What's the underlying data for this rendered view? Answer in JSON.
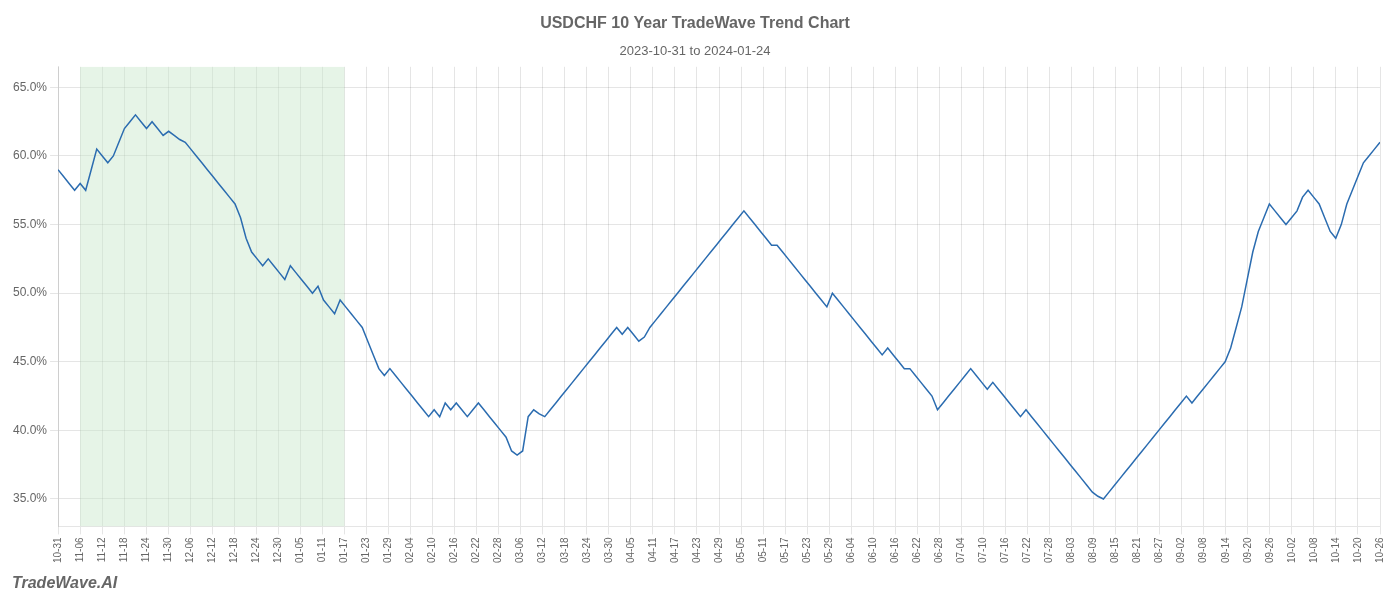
{
  "chart_data": {
    "type": "line",
    "title": "USDCHF 10 Year TradeWave Trend Chart",
    "subtitle": "2023-10-31 to 2024-01-24",
    "annotations": [
      "TradeWave.AI"
    ],
    "color": "#2b6cb0",
    "grid": true,
    "x": [
      0,
      1,
      2,
      3,
      4,
      5,
      6,
      7,
      8,
      9,
      10,
      11,
      12,
      13,
      14,
      15,
      16,
      17,
      18,
      19,
      20,
      21,
      22,
      23,
      24,
      25,
      26,
      27,
      28,
      29,
      30,
      31,
      32,
      33,
      34,
      35,
      36,
      37,
      38,
      39,
      40,
      41,
      42,
      43,
      44,
      45,
      46,
      47,
      48,
      49,
      50,
      51,
      52,
      53,
      54,
      55,
      56,
      57,
      58,
      59,
      60,
      61,
      62,
      63,
      64,
      65,
      66,
      67,
      68,
      69,
      70,
      71,
      72,
      73,
      74,
      75,
      76,
      77,
      78,
      79,
      80,
      81,
      82,
      83,
      84,
      85,
      86,
      87,
      88,
      89,
      90,
      91,
      92,
      93,
      94,
      95,
      96,
      97,
      98,
      99,
      100,
      101,
      102,
      103,
      104,
      105,
      106,
      107,
      108,
      109,
      110,
      111,
      112,
      113,
      114,
      115,
      116,
      117,
      118,
      119,
      120,
      121,
      122,
      123,
      124,
      125,
      126,
      127,
      128,
      129,
      130,
      131,
      132,
      133,
      134,
      135,
      136,
      137,
      138,
      139,
      140,
      141,
      142,
      143,
      144,
      145,
      146,
      147,
      148,
      149,
      150,
      151,
      152,
      153,
      154,
      155,
      156,
      157,
      158,
      159,
      160,
      161,
      162,
      163,
      164,
      165,
      166,
      167,
      168,
      169,
      170,
      171,
      172,
      173,
      174,
      175,
      176,
      177,
      178,
      179,
      180,
      181,
      182,
      183,
      184,
      185,
      186,
      187,
      188,
      189,
      190,
      191,
      192,
      193,
      194,
      195,
      196,
      197,
      198,
      199,
      200,
      201,
      202,
      203,
      204,
      205,
      206,
      207,
      208,
      209,
      210,
      211,
      212,
      213,
      214,
      215,
      216,
      217,
      218,
      219,
      220,
      221,
      222,
      223,
      224,
      225,
      226,
      227,
      228,
      229,
      230,
      231,
      232,
      233,
      234,
      235,
      236,
      237,
      238,
      239
    ],
    "values": [
      59.0,
      58.5,
      58.0,
      57.5,
      58.0,
      57.5,
      59.0,
      60.5,
      60.0,
      59.5,
      60.0,
      61.0,
      62.0,
      62.5,
      63.0,
      62.5,
      62.0,
      62.5,
      62.0,
      61.5,
      61.8,
      61.5,
      61.2,
      61.0,
      60.5,
      60.0,
      59.5,
      59.0,
      58.5,
      58.0,
      57.5,
      57.0,
      56.5,
      55.5,
      54.0,
      53.0,
      52.5,
      52.0,
      52.5,
      52.0,
      51.5,
      51.0,
      52.0,
      51.5,
      51.0,
      50.5,
      50.0,
      50.5,
      49.5,
      49.0,
      48.5,
      49.5,
      49.0,
      48.5,
      48.0,
      47.5,
      46.5,
      45.5,
      44.5,
      44.0,
      44.5,
      44.0,
      43.5,
      43.0,
      42.5,
      42.0,
      41.5,
      41.0,
      41.5,
      41.0,
      42.0,
      41.5,
      42.0,
      41.5,
      41.0,
      41.5,
      42.0,
      41.5,
      41.0,
      40.5,
      40.0,
      39.5,
      38.5,
      38.2,
      38.5,
      41.0,
      41.5,
      41.2,
      41.0,
      41.5,
      42.0,
      42.5,
      43.0,
      43.5,
      44.0,
      44.5,
      45.0,
      45.5,
      46.0,
      46.5,
      47.0,
      47.5,
      47.0,
      47.5,
      47.0,
      46.5,
      46.8,
      47.5,
      48.0,
      48.5,
      49.0,
      49.5,
      50.0,
      50.5,
      51.0,
      51.5,
      52.0,
      52.5,
      53.0,
      53.5,
      54.0,
      54.5,
      55.0,
      55.5,
      56.0,
      55.5,
      55.0,
      54.5,
      54.0,
      53.5,
      53.5,
      53.0,
      52.5,
      52.0,
      51.5,
      51.0,
      50.5,
      50.0,
      49.5,
      49.0,
      50.0,
      49.5,
      49.0,
      48.5,
      48.0,
      47.5,
      47.0,
      46.5,
      46.0,
      45.5,
      46.0,
      45.5,
      45.0,
      44.5,
      44.5,
      44.0,
      43.5,
      43.0,
      42.5,
      41.5,
      42.0,
      42.5,
      43.0,
      43.5,
      44.0,
      44.5,
      44.0,
      43.5,
      43.0,
      43.5,
      43.0,
      42.5,
      42.0,
      41.5,
      41.0,
      41.5,
      41.0,
      40.5,
      40.0,
      39.5,
      39.0,
      38.5,
      38.0,
      37.5,
      37.0,
      36.5,
      36.0,
      35.5,
      35.2,
      35.0,
      35.5,
      36.0,
      36.5,
      37.0,
      37.5,
      38.0,
      38.5,
      39.0,
      39.5,
      40.0,
      40.5,
      41.0,
      41.5,
      42.0,
      42.5,
      42.0,
      42.5,
      43.0,
      43.5,
      44.0,
      44.5,
      45.0,
      46.0,
      47.5,
      49.0,
      51.0,
      53.0,
      54.5,
      55.5,
      56.5,
      56.0,
      55.5,
      55.0,
      55.5,
      56.0,
      57.0,
      57.5,
      57.0,
      56.5,
      55.5,
      54.5,
      54.0,
      55.0,
      56.5,
      57.5,
      58.5,
      59.5,
      60.0,
      60.5,
      61.0
    ],
    "xlim": [
      0,
      239
    ],
    "xticks": [
      {
        "value": 0,
        "label": "10-31"
      },
      {
        "value": 3.9833333333,
        "label": "11-06"
      },
      {
        "value": 7.9666666667,
        "label": "11-12"
      },
      {
        "value": 11.95,
        "label": "11-18"
      },
      {
        "value": 15.9333333333,
        "label": "11-24"
      },
      {
        "value": 19.9166666667,
        "label": "11-30"
      },
      {
        "value": 23.9,
        "label": "12-06"
      },
      {
        "value": 27.8833333333,
        "label": "12-12"
      },
      {
        "value": 31.8666666667,
        "label": "12-18"
      },
      {
        "value": 35.85,
        "label": "12-24"
      },
      {
        "value": 39.8333333333,
        "label": "12-30"
      },
      {
        "value": 43.8166666667,
        "label": "01-05"
      },
      {
        "value": 47.8,
        "label": "01-11"
      },
      {
        "value": 51.7833333333,
        "label": "01-17"
      },
      {
        "value": 55.7666666667,
        "label": "01-23"
      },
      {
        "value": 59.75,
        "label": "01-29"
      },
      {
        "value": 63.7333333333,
        "label": "02-04"
      },
      {
        "value": 67.7166666667,
        "label": "02-10"
      },
      {
        "value": 71.7,
        "label": "02-16"
      },
      {
        "value": 75.6833333333,
        "label": "02-22"
      },
      {
        "value": 79.6666666667,
        "label": "02-28"
      },
      {
        "value": 83.65,
        "label": "03-06"
      },
      {
        "value": 87.6333333333,
        "label": "03-12"
      },
      {
        "value": 91.6166666667,
        "label": "03-18"
      },
      {
        "value": 95.6,
        "label": "03-24"
      },
      {
        "value": 99.5833333333,
        "label": "03-30"
      },
      {
        "value": 103.5666666667,
        "label": "04-05"
      },
      {
        "value": 107.55,
        "label": "04-11"
      },
      {
        "value": 111.5333333333,
        "label": "04-17"
      },
      {
        "value": 115.5166666667,
        "label": "04-23"
      },
      {
        "value": 119.5,
        "label": "04-29"
      },
      {
        "value": 123.4833333333,
        "label": "05-05"
      },
      {
        "value": 127.4666666667,
        "label": "05-11"
      },
      {
        "value": 131.45,
        "label": "05-17"
      },
      {
        "value": 135.4333333333,
        "label": "05-23"
      },
      {
        "value": 139.4166666667,
        "label": "05-29"
      },
      {
        "value": 143.4,
        "label": "06-04"
      },
      {
        "value": 147.3833333333,
        "label": "06-10"
      },
      {
        "value": 151.3666666667,
        "label": "06-16"
      },
      {
        "value": 155.35,
        "label": "06-22"
      },
      {
        "value": 159.3333333333,
        "label": "06-28"
      },
      {
        "value": 163.3166666667,
        "label": "07-04"
      },
      {
        "value": 167.3,
        "label": "07-10"
      },
      {
        "value": 171.2833333333,
        "label": "07-16"
      },
      {
        "value": 175.2666666667,
        "label": "07-22"
      },
      {
        "value": 179.25,
        "label": "07-28"
      },
      {
        "value": 183.2333333333,
        "label": "08-03"
      },
      {
        "value": 187.2166666667,
        "label": "08-09"
      },
      {
        "value": 191.2,
        "label": "08-15"
      },
      {
        "value": 195.1833333333,
        "label": "08-21"
      },
      {
        "value": 199.1666666667,
        "label": "08-27"
      },
      {
        "value": 203.15,
        "label": "09-02"
      },
      {
        "value": 207.1333333333,
        "label": "09-08"
      },
      {
        "value": 211.1166666667,
        "label": "09-14"
      },
      {
        "value": 215.1,
        "label": "09-20"
      },
      {
        "value": 219.0833333333,
        "label": "09-26"
      },
      {
        "value": 223.0666666667,
        "label": "10-02"
      },
      {
        "value": 227.05,
        "label": "10-08"
      },
      {
        "value": 231.0333333333,
        "label": "10-14"
      },
      {
        "value": 235.0166666667,
        "label": "10-20"
      },
      {
        "value": 239,
        "label": "10-26"
      }
    ],
    "ylim": [
      33.0,
      66.5
    ],
    "yticks": [
      {
        "value": 35.0,
        "label": "35.0%"
      },
      {
        "value": 40.0,
        "label": "40.0%"
      },
      {
        "value": 45.0,
        "label": "45.0%"
      },
      {
        "value": 50.0,
        "label": "50.0%"
      },
      {
        "value": 55.0,
        "label": "55.0%"
      },
      {
        "value": 60.0,
        "label": "60.0%"
      },
      {
        "value": 65.0,
        "label": "65.0%"
      }
    ],
    "shade": {
      "x": [
        3.9833333333,
        51.7833333333
      ],
      "color": "#c8e6c9"
    }
  }
}
